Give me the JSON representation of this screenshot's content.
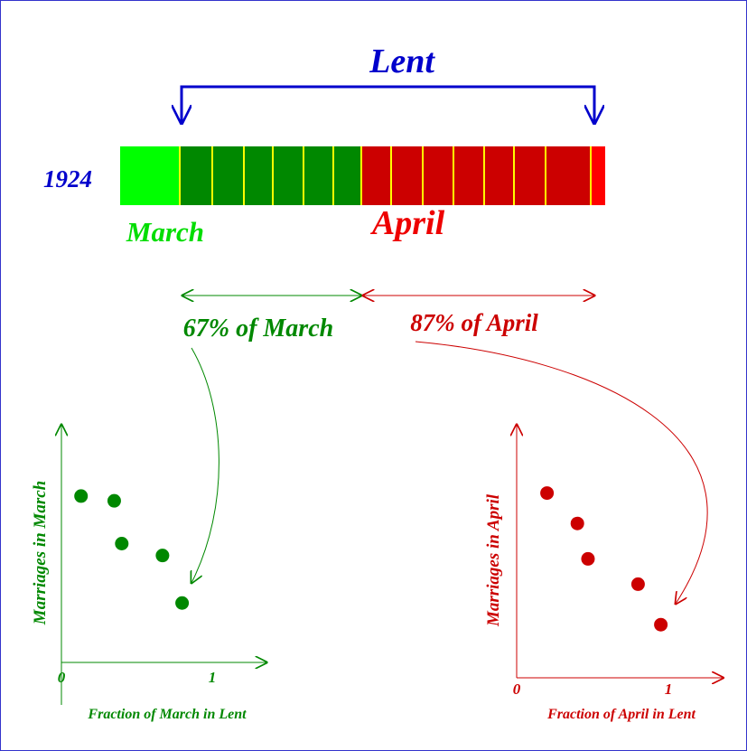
{
  "title": "Lent",
  "year": "1924",
  "months": [
    "March",
    "April"
  ],
  "shares": [
    "67% of March",
    "87% of April"
  ],
  "chart_data": [
    {
      "type": "scatter",
      "color": "#008800",
      "xlabel": "Fraction of March in Lent",
      "ylabel": "Marriages in March",
      "x": [
        0.13,
        0.35,
        0.4,
        0.67,
        0.8
      ],
      "values": [
        0.7,
        0.68,
        0.5,
        0.45,
        0.25
      ],
      "xlim": [
        0,
        1.36
      ],
      "xticks": [
        0,
        1
      ],
      "ylim": [
        0,
        1
      ],
      "yticks": []
    },
    {
      "type": "scatter",
      "color": "#cc0000",
      "xlabel": "Fraction of April in Lent",
      "ylabel": "Marriages in April",
      "x": [
        0.2,
        0.4,
        0.47,
        0.8,
        0.95
      ],
      "values": [
        0.73,
        0.61,
        0.47,
        0.37,
        0.21
      ],
      "xlim": [
        0,
        1.36
      ],
      "xticks": [
        0,
        1
      ],
      "ylim": [
        0,
        1
      ],
      "yticks": []
    }
  ]
}
